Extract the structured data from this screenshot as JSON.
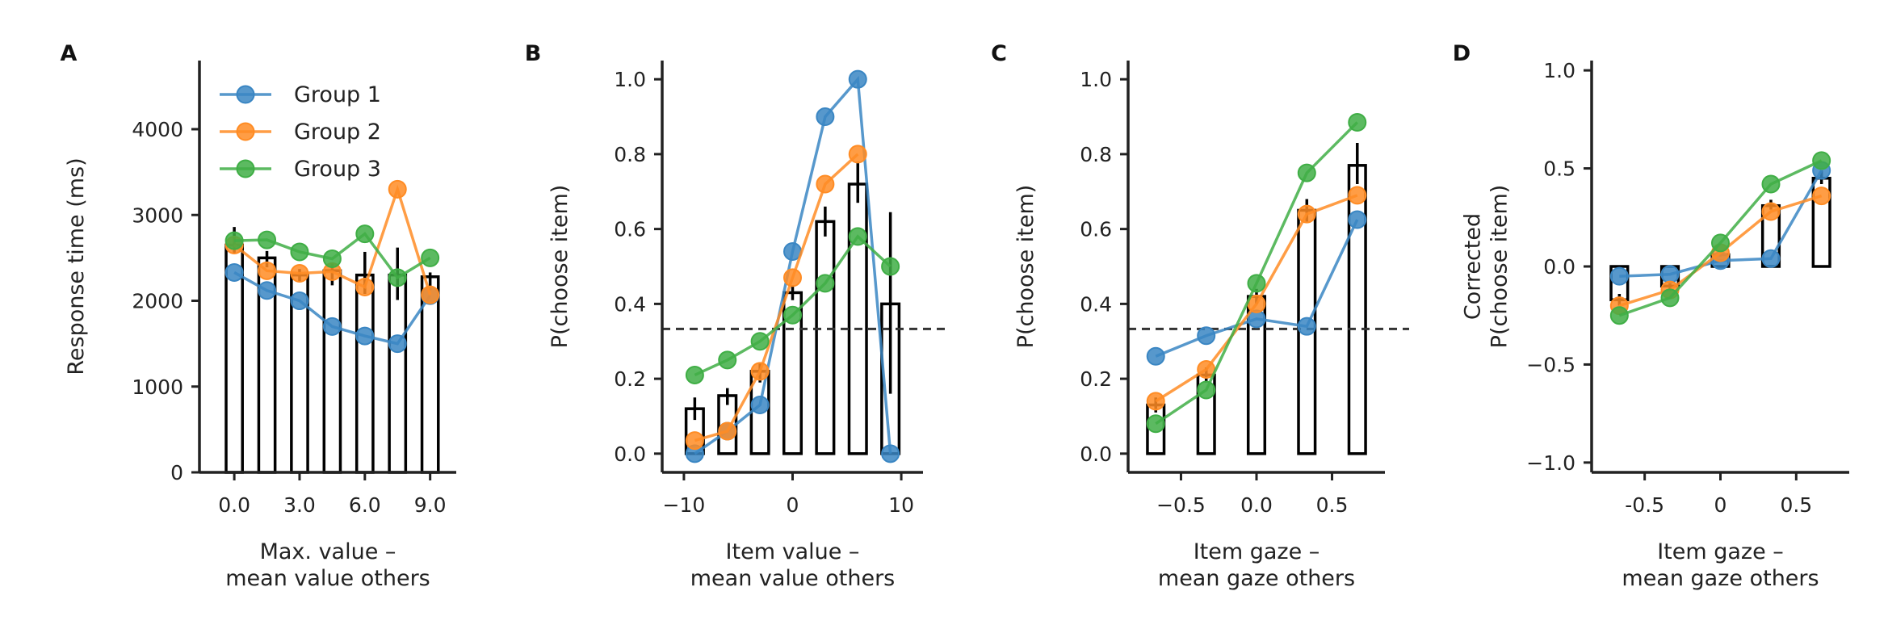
{
  "colors": {
    "group1": "#3a86c3",
    "group2": "#ff8c24",
    "group3": "#3fae45",
    "bar": "#000000",
    "axis": "#222222"
  },
  "legend": {
    "placement": "top-right",
    "entries": [
      "Group 1",
      "Group 2",
      "Group 3"
    ]
  },
  "chart_data": [
    {
      "panel": "A",
      "type": "bar",
      "xlabel": [
        "Max. value –",
        "mean value others"
      ],
      "ylabel": [
        "Response time (ms)"
      ],
      "xlim": [
        -1.6,
        10.2
      ],
      "ylim": [
        0,
        4800
      ],
      "xticks": [
        0,
        3,
        6,
        9
      ],
      "xtick_labels": [
        "0.0",
        "3.0",
        "6.0",
        "9.0"
      ],
      "yticks": [
        0,
        1000,
        2000,
        3000,
        4000
      ],
      "ytick_labels": [
        "0",
        "1000",
        "2000",
        "3000",
        "4000"
      ],
      "bar_width": 0.75,
      "bars": {
        "x": [
          0,
          1.5,
          3,
          4.5,
          6,
          7.5,
          9
        ],
        "values": [
          2650,
          2500,
          2300,
          2350,
          2300,
          2300,
          2280
        ],
        "err_low": [
          2550,
          2390,
          2220,
          2180,
          2080,
          2010,
          2120
        ],
        "err_high": [
          2860,
          2580,
          2370,
          2440,
          2570,
          2620,
          2330
        ]
      },
      "series": [
        {
          "name": "Group 1",
          "x": [
            0,
            1.5,
            3,
            4.5,
            6,
            7.5,
            9
          ],
          "values": [
            2330,
            2120,
            2000,
            1700,
            1590,
            1500,
            2060
          ]
        },
        {
          "name": "Group 2",
          "x": [
            0,
            1.5,
            3,
            4.5,
            6,
            7.5,
            9
          ],
          "values": [
            2650,
            2350,
            2320,
            2340,
            2160,
            3300,
            2070
          ]
        },
        {
          "name": "Group 3",
          "x": [
            0,
            1.5,
            3,
            4.5,
            6,
            7.5,
            9
          ],
          "values": [
            2700,
            2710,
            2570,
            2490,
            2780,
            2270,
            2500
          ]
        }
      ]
    },
    {
      "panel": "B",
      "type": "bar",
      "xlabel": [
        "Item value –",
        "mean value others"
      ],
      "ylabel": [
        "P(choose item)"
      ],
      "xlim": [
        -12,
        12
      ],
      "ylim": [
        -0.05,
        1.05
      ],
      "xticks": [
        -10,
        0,
        10
      ],
      "xtick_labels": [
        "−10",
        "0",
        "10"
      ],
      "yticks": [
        0,
        0.2,
        0.4,
        0.6,
        0.8,
        1.0
      ],
      "ytick_labels": [
        "0.0",
        "0.2",
        "0.4",
        "0.6",
        "0.8",
        "1.0"
      ],
      "chance_line": 0.333,
      "bar_width": 1.6,
      "bars": {
        "x": [
          -9,
          -6,
          -3,
          0,
          3,
          6,
          9
        ],
        "values": [
          0.12,
          0.155,
          0.22,
          0.43,
          0.62,
          0.72,
          0.4
        ],
        "err_low": [
          0.09,
          0.13,
          0.19,
          0.41,
          0.58,
          0.67,
          0.16
        ],
        "err_high": [
          0.15,
          0.175,
          0.24,
          0.45,
          0.66,
          0.78,
          0.645
        ]
      },
      "series": [
        {
          "name": "Group 1",
          "x": [
            -9,
            -6,
            -3,
            0,
            3,
            6,
            9
          ],
          "values": [
            0.0,
            0.06,
            0.13,
            0.54,
            0.9,
            1.0,
            0.0
          ]
        },
        {
          "name": "Group 2",
          "x": [
            -9,
            -6,
            -3,
            0,
            3,
            6,
            9
          ],
          "values": [
            0.035,
            0.06,
            0.22,
            0.47,
            0.72,
            0.8,
            null
          ]
        },
        {
          "name": "Group 3",
          "x": [
            -9,
            -6,
            -3,
            0,
            3,
            6,
            9
          ],
          "values": [
            0.21,
            0.25,
            0.3,
            0.37,
            0.455,
            0.58,
            0.5
          ]
        }
      ]
    },
    {
      "panel": "C",
      "type": "bar",
      "xlabel": [
        "Item gaze –",
        "mean gaze others"
      ],
      "ylabel": [
        "P(choose item)"
      ],
      "xlim": [
        -0.85,
        0.85
      ],
      "ylim": [
        -0.05,
        1.05
      ],
      "xticks": [
        -0.5,
        0,
        0.5
      ],
      "xtick_labels": [
        "−0.5",
        "0.0",
        "0.5"
      ],
      "yticks": [
        0,
        0.2,
        0.4,
        0.6,
        0.8,
        1.0
      ],
      "ytick_labels": [
        "0.0",
        "0.2",
        "0.4",
        "0.6",
        "0.8",
        "1.0"
      ],
      "chance_line": 0.333,
      "bar_width": 0.11,
      "bars": {
        "x": [
          -0.667,
          -0.333,
          0,
          0.333,
          0.667
        ],
        "values": [
          0.13,
          0.21,
          0.42,
          0.65,
          0.77
        ],
        "err_low": [
          0.11,
          0.19,
          0.4,
          0.62,
          0.72
        ],
        "err_high": [
          0.15,
          0.23,
          0.44,
          0.68,
          0.83
        ]
      },
      "series": [
        {
          "name": "Group 1",
          "x": [
            -0.667,
            -0.333,
            0,
            0.333,
            0.667
          ],
          "values": [
            0.26,
            0.315,
            0.36,
            0.34,
            0.625
          ]
        },
        {
          "name": "Group 2",
          "x": [
            -0.667,
            -0.333,
            0,
            0.333,
            0.667
          ],
          "values": [
            0.14,
            0.225,
            0.4,
            0.64,
            0.69
          ]
        },
        {
          "name": "Group 3",
          "x": [
            -0.667,
            -0.333,
            0,
            0.333,
            0.667
          ],
          "values": [
            0.08,
            0.17,
            0.455,
            0.75,
            0.885
          ]
        }
      ]
    },
    {
      "panel": "D",
      "type": "bar",
      "xlabel": [
        "Item gaze –",
        "mean gaze others"
      ],
      "ylabel": [
        "Corrected",
        "P(choose item)"
      ],
      "xlim": [
        -0.85,
        0.85
      ],
      "ylim": [
        -1.05,
        1.05
      ],
      "xticks": [
        -0.5,
        0,
        0.5
      ],
      "xtick_labels": [
        "-0.5",
        "0",
        "0.5"
      ],
      "yticks": [
        -1.0,
        -0.5,
        0,
        0.5,
        1.0
      ],
      "ytick_labels": [
        "−1.0",
        "−0.5",
        "0.0",
        "0.5",
        "1.0"
      ],
      "bar_width": 0.11,
      "bars": {
        "x": [
          -0.667,
          -0.333,
          0,
          0.333,
          0.667
        ],
        "values": [
          -0.17,
          -0.1,
          0.06,
          0.31,
          0.45
        ],
        "err_low": [
          -0.2,
          -0.12,
          0.05,
          0.29,
          0.42
        ],
        "err_high": [
          -0.14,
          -0.08,
          0.07,
          0.34,
          0.49
        ]
      },
      "series": [
        {
          "name": "Group 1",
          "x": [
            -0.667,
            -0.333,
            0,
            0.333,
            0.667
          ],
          "values": [
            -0.05,
            -0.04,
            0.03,
            0.04,
            0.49
          ]
        },
        {
          "name": "Group 2",
          "x": [
            -0.667,
            -0.333,
            0,
            0.333,
            0.667
          ],
          "values": [
            -0.2,
            -0.12,
            0.07,
            0.28,
            0.36
          ]
        },
        {
          "name": "Group 3",
          "x": [
            -0.667,
            -0.333,
            0,
            0.333,
            0.667
          ],
          "values": [
            -0.25,
            -0.16,
            0.12,
            0.42,
            0.54
          ]
        }
      ]
    }
  ]
}
